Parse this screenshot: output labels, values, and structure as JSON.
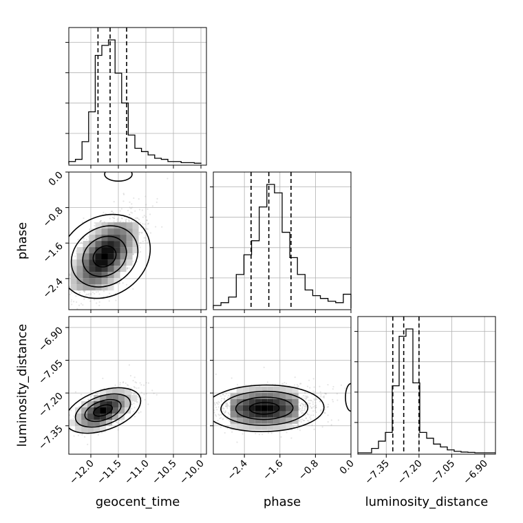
{
  "chart_data": {
    "type": "corner",
    "title": "",
    "parameters": [
      {
        "name": "geocent_time",
        "label": "geocent_time",
        "range": [
          -12.4,
          -9.9
        ],
        "ticks": [
          -12.0,
          -11.5,
          -11.0,
          -10.5,
          -10.0
        ],
        "tick_labels": [
          "−12.0",
          "−11.5",
          "−11.0",
          "−10.5",
          "−10.0"
        ],
        "quantiles": [
          -11.87,
          -11.65,
          -11.35
        ],
        "hist_edges_range": [
          -12.4,
          -10.0
        ],
        "hist_counts": [
          2,
          4,
          20,
          47,
          98,
          107,
          112,
          82,
          55,
          26,
          14,
          11,
          8,
          5,
          4,
          2,
          2,
          1,
          1,
          0.5
        ]
      },
      {
        "name": "phase",
        "label": "phase",
        "range": [
          -3.1,
          0.0
        ],
        "ticks": [
          -2.4,
          -1.6,
          -0.8,
          0.0
        ],
        "tick_labels": [
          "−2.4",
          "−1.6",
          "−0.8",
          "0.0"
        ],
        "quantiles": [
          -2.25,
          -1.85,
          -1.35
        ],
        "hist_edges_range": [
          -3.1,
          0.0
        ],
        "hist_counts": [
          2,
          4,
          8,
          24,
          38,
          48,
          72,
          88,
          82,
          54,
          36,
          24,
          13,
          9,
          7,
          5,
          4,
          10
        ]
      },
      {
        "name": "luminosity_distance",
        "label": "luminosity_distance",
        "range": [
          -7.48,
          -6.85
        ],
        "ticks": [
          -7.35,
          -7.2,
          -7.05,
          -6.9
        ],
        "tick_labels": [
          "−7.35",
          "−7.20",
          "−7.05",
          "−6.90"
        ],
        "quantiles": [
          -7.32,
          -7.27,
          -7.2
        ],
        "hist_edges_range": [
          -7.48,
          -6.85
        ],
        "hist_counts": [
          0,
          0,
          3,
          8,
          14,
          46,
          80,
          85,
          48,
          14,
          10,
          6,
          4,
          2,
          1,
          0.5,
          0.3,
          0,
          0,
          0
        ]
      }
    ],
    "pairs": [
      {
        "x": "geocent_time",
        "y": "phase",
        "mean": [
          -11.75,
          -1.9
        ],
        "sd": [
          0.3,
          0.45
        ],
        "corr": 0.6,
        "extra_blob": [
          -11.5,
          -0.05
        ]
      },
      {
        "x": "geocent_time",
        "y": "luminosity_distance",
        "mean": [
          -11.78,
          -7.28
        ],
        "sd": [
          0.25,
          0.045
        ],
        "corr": 0.55
      },
      {
        "x": "phase",
        "y": "luminosity_distance",
        "mean": [
          -1.95,
          -7.27
        ],
        "sd": [
          0.55,
          0.045
        ],
        "corr": 0.05
      }
    ],
    "grid": true,
    "quantile_style": "dashed"
  }
}
